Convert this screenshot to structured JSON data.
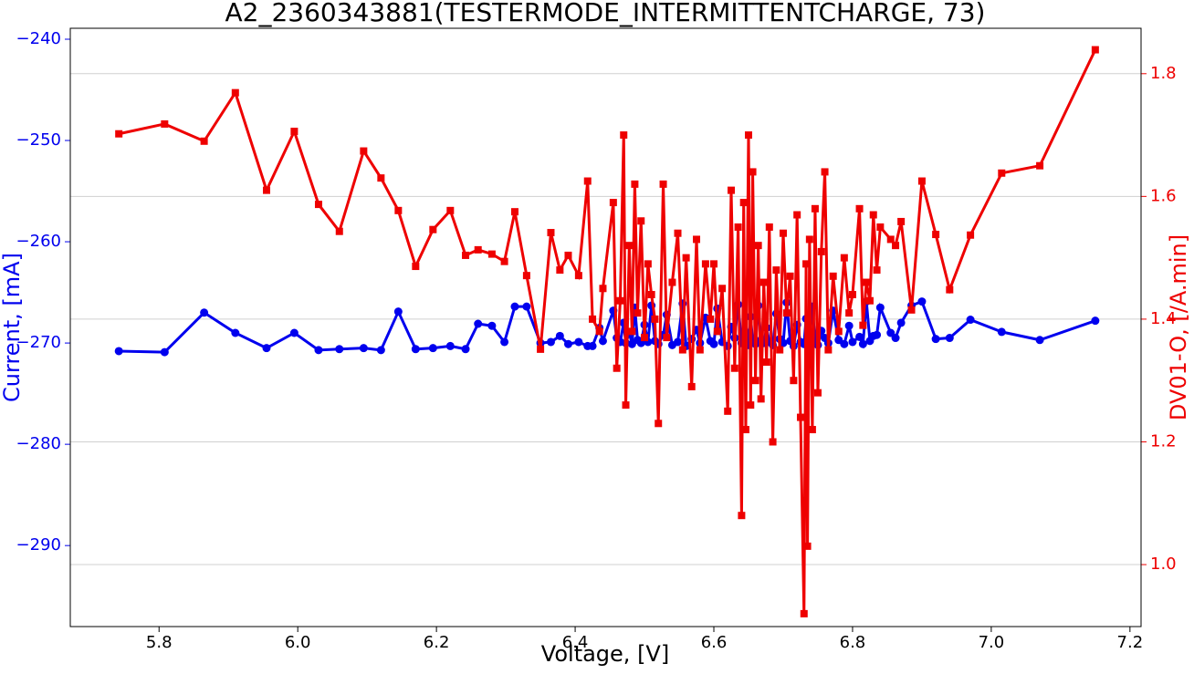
{
  "chart_data": {
    "type": "line",
    "title": "A2_2360343881(TESTERMODE_INTERMITTENTCHARGE, 73)",
    "xlabel": "Voltage, [V]",
    "ylabel": "Current, [mA]",
    "y2label": "DV01-O, [/A.min]",
    "x": [
      5.742,
      5.808,
      5.865,
      5.91,
      5.955,
      5.995,
      6.03,
      6.06,
      6.095,
      6.12,
      6.145,
      6.17,
      6.195,
      6.22,
      6.242,
      6.26,
      6.28,
      6.298,
      6.313,
      6.33,
      6.35,
      6.365,
      6.378,
      6.39,
      6.405,
      6.418,
      6.425,
      6.435,
      6.44,
      6.455,
      6.46,
      6.465,
      6.47,
      6.473,
      6.478,
      6.482,
      6.486,
      6.49,
      6.495,
      6.5,
      6.505,
      6.51,
      6.515,
      6.52,
      6.527,
      6.532,
      6.54,
      6.548,
      6.555,
      6.56,
      6.568,
      6.575,
      6.58,
      6.588,
      6.595,
      6.6,
      6.605,
      6.612,
      6.62,
      6.625,
      6.63,
      6.635,
      6.64,
      6.643,
      6.646,
      6.65,
      6.653,
      6.656,
      6.66,
      6.664,
      6.668,
      6.672,
      6.676,
      6.68,
      6.685,
      6.69,
      6.695,
      6.7,
      6.705,
      6.71,
      6.715,
      6.72,
      6.725,
      6.73,
      6.733,
      6.735,
      6.738,
      6.742,
      6.746,
      6.75,
      6.755,
      6.76,
      6.765,
      6.772,
      6.78,
      6.788,
      6.795,
      6.8,
      6.81,
      6.815,
      6.82,
      6.825,
      6.83,
      6.835,
      6.84,
      6.855,
      6.862,
      6.87,
      6.885,
      6.9,
      6.92,
      6.94,
      6.97,
      7.015,
      7.07,
      7.15
    ],
    "series": [
      {
        "name": "Current, [mA]",
        "color": "#0000ee",
        "marker": "circle",
        "axis": "y",
        "values": [
          -270.8,
          -270.9,
          -267,
          -269,
          -270.5,
          -269,
          -270.7,
          -270.6,
          -270.5,
          -270.7,
          -266.9,
          -270.6,
          -270.5,
          -270.3,
          -270.6,
          -268.1,
          -268.3,
          -269.9,
          -266.4,
          -266.4,
          -270,
          -269.9,
          -269.3,
          -270.1,
          -269.9,
          -270.3,
          -270.3,
          -268.5,
          -269.8,
          -266.8,
          -269.5,
          -269.9,
          -268,
          -270,
          -269,
          -270.1,
          -266.5,
          -269.7,
          -270,
          -268.2,
          -269.9,
          -266.3,
          -269.8,
          -270.1,
          -269.2,
          -267.2,
          -270.2,
          -269.9,
          -266.1,
          -270.3,
          -269.6,
          -268.7,
          -270,
          -267.5,
          -269.8,
          -270.1,
          -266.6,
          -269.9,
          -270.3,
          -268.4,
          -269.5,
          -266.2,
          -270,
          -269.6,
          -268.9,
          -270.2,
          -267.4,
          -269.8,
          -270.1,
          -266.3,
          -269.7,
          -270,
          -268.5,
          -269.9,
          -270.2,
          -267.1,
          -269.6,
          -270,
          -266,
          -269.8,
          -270.3,
          -268.2,
          -269.9,
          -270.1,
          -267.6,
          -269.7,
          -270,
          -266.4,
          -269.8,
          -270.2,
          -268.8,
          -269.5,
          -270,
          -266.8,
          -269.7,
          -270.1,
          -268.3,
          -269.9,
          -269.4,
          -270.1,
          -265.9,
          -269.8,
          -269.3,
          -269.2,
          -266.5,
          -269,
          -269.5,
          -268,
          -266.3,
          -265.9,
          -269.6,
          -269.5,
          -267.7,
          -268.9,
          -269.7,
          -267.8
        ]
      },
      {
        "name": "DV01-O, [/A.min]",
        "color": "#ee0000",
        "marker": "square",
        "axis": "y2",
        "values": [
          1.702,
          1.718,
          1.69,
          1.769,
          1.61,
          1.706,
          1.587,
          1.543,
          1.674,
          1.63,
          1.577,
          1.486,
          1.546,
          1.577,
          1.504,
          1.513,
          1.506,
          1.494,
          1.575,
          1.471,
          1.351,
          1.541,
          1.48,
          1.504,
          1.471,
          1.625,
          1.4,
          1.38,
          1.45,
          1.59,
          1.32,
          1.43,
          1.7,
          1.26,
          1.52,
          1.38,
          1.62,
          1.41,
          1.56,
          1.37,
          1.49,
          1.44,
          1.4,
          1.23,
          1.62,
          1.37,
          1.46,
          1.54,
          1.35,
          1.5,
          1.29,
          1.53,
          1.35,
          1.49,
          1.4,
          1.49,
          1.38,
          1.45,
          1.25,
          1.61,
          1.32,
          1.55,
          1.08,
          1.59,
          1.22,
          1.7,
          1.26,
          1.64,
          1.3,
          1.52,
          1.27,
          1.46,
          1.33,
          1.55,
          1.2,
          1.48,
          1.35,
          1.54,
          1.41,
          1.47,
          1.3,
          1.57,
          1.24,
          0.92,
          1.49,
          1.03,
          1.53,
          1.22,
          1.58,
          1.28,
          1.51,
          1.64,
          1.35,
          1.47,
          1.38,
          1.5,
          1.41,
          1.44,
          1.58,
          1.39,
          1.46,
          1.43,
          1.57,
          1.48,
          1.55,
          1.53,
          1.52,
          1.559,
          1.415,
          1.625,
          1.538,
          1.448,
          1.537,
          1.638,
          1.65,
          1.839
        ]
      }
    ],
    "xlim": [
      5.672,
      7.216
    ],
    "xticks": [
      5.8,
      {
        "value": 6,
        "label": "6.0"
      },
      6.2,
      6.4,
      6.6,
      6.8,
      {
        "value": 7,
        "label": "7.0"
      },
      7.2
    ],
    "ylim": [
      -298.0,
      -238.92
    ],
    "yticks": [
      {
        "value": -290,
        "label": "−290"
      },
      {
        "value": -280,
        "label": "−280"
      },
      {
        "value": -270,
        "label": "−270"
      },
      {
        "value": -260,
        "label": "−260"
      },
      {
        "value": -250,
        "label": "−250"
      },
      {
        "value": -240,
        "label": "−240"
      }
    ],
    "y2lim": [
      0.899,
      1.874
    ],
    "y2ticks": [
      {
        "value": 1,
        "label": "1.0"
      },
      1.2,
      1.4,
      1.6,
      1.8
    ],
    "grid": "y2"
  }
}
